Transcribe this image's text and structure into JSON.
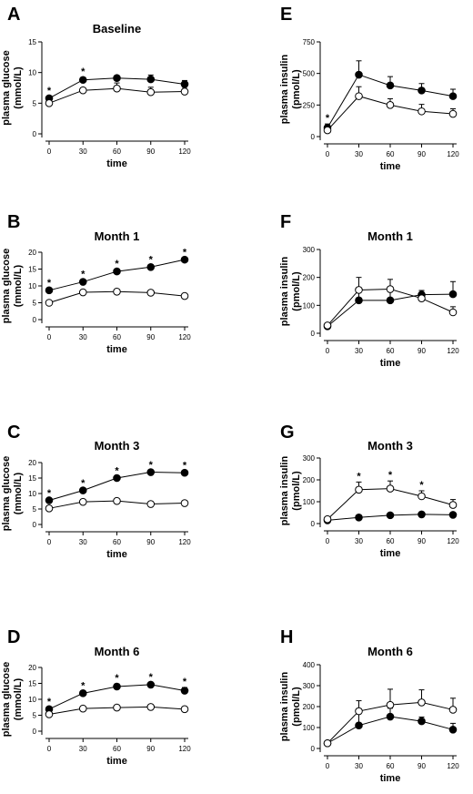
{
  "chart_data": [
    {
      "panel": "A",
      "type": "line",
      "title": "Baseline",
      "xlabel": "time",
      "ylabel": "plasma glucose\n(mmol/L)",
      "x": [
        0,
        30,
        60,
        90,
        120
      ],
      "xlim": [
        0,
        120
      ],
      "ylim": [
        0,
        15
      ],
      "yticks": [
        0,
        5,
        10,
        15
      ],
      "series": [
        {
          "marker": "filled",
          "values": [
            5.8,
            8.8,
            9.1,
            8.9,
            8.1
          ],
          "err": [
            0.3,
            0.4,
            0.4,
            0.7,
            0.6
          ]
        },
        {
          "marker": "open",
          "values": [
            5.0,
            7.1,
            7.4,
            6.8,
            6.9
          ],
          "err": [
            0.3,
            0.4,
            0.9,
            0.8,
            0.7
          ]
        }
      ],
      "significance": [
        0,
        30
      ]
    },
    {
      "panel": "B",
      "type": "line",
      "title": "Month 1",
      "xlabel": "time",
      "ylabel": "plasma glucose\n(mmol/L)",
      "x": [
        0,
        30,
        60,
        90,
        120
      ],
      "xlim": [
        0,
        120
      ],
      "ylim": [
        0,
        20
      ],
      "yticks": [
        0,
        5,
        10,
        15,
        20
      ],
      "series": [
        {
          "marker": "filled",
          "values": [
            8.7,
            11.2,
            14.3,
            15.6,
            17.8
          ],
          "err": [
            0.5,
            0.5,
            0.5,
            0.5,
            0.5
          ]
        },
        {
          "marker": "open",
          "values": [
            5.0,
            8.1,
            8.3,
            8.0,
            7.0
          ],
          "err": [
            0.3,
            0.3,
            0.3,
            0.3,
            0.3
          ]
        }
      ],
      "significance": [
        0,
        30,
        60,
        90,
        120
      ]
    },
    {
      "panel": "C",
      "type": "line",
      "title": "Month 3",
      "xlabel": "time",
      "ylabel": "plasma glucose\n(mmol/L)",
      "x": [
        0,
        30,
        60,
        90,
        120
      ],
      "xlim": [
        0,
        120
      ],
      "ylim": [
        0,
        20
      ],
      "yticks": [
        0,
        5,
        10,
        15,
        20
      ],
      "series": [
        {
          "marker": "filled",
          "values": [
            7.8,
            11.0,
            15.0,
            16.9,
            16.7
          ],
          "err": [
            0.5,
            0.5,
            0.5,
            0.5,
            0.5
          ]
        },
        {
          "marker": "open",
          "values": [
            5.2,
            7.3,
            7.6,
            6.6,
            6.9
          ],
          "err": [
            0.3,
            0.4,
            0.4,
            0.5,
            0.4
          ]
        }
      ],
      "significance": [
        0,
        30,
        60,
        90,
        120
      ]
    },
    {
      "panel": "D",
      "type": "line",
      "title": "Month 6",
      "xlabel": "time",
      "ylabel": "plasma glucose\n(mmol/L)",
      "x": [
        0,
        30,
        60,
        90,
        120
      ],
      "xlim": [
        0,
        120
      ],
      "ylim": [
        0,
        20
      ],
      "yticks": [
        0,
        5,
        10,
        15,
        20
      ],
      "series": [
        {
          "marker": "filled",
          "values": [
            6.9,
            11.9,
            14.0,
            14.6,
            12.7
          ],
          "err": [
            0.5,
            0.6,
            0.8,
            0.6,
            1.0
          ]
        },
        {
          "marker": "open",
          "values": [
            5.3,
            7.1,
            7.4,
            7.6,
            6.9
          ],
          "err": [
            0.3,
            0.3,
            0.3,
            0.3,
            0.3
          ]
        }
      ],
      "significance": [
        0,
        30,
        60,
        90,
        120
      ]
    },
    {
      "panel": "E",
      "type": "line",
      "title": "",
      "xlabel": "time",
      "ylabel": "plasma insulin\n(pmol/L)",
      "x": [
        0,
        30,
        60,
        90,
        120
      ],
      "xlim": [
        0,
        120
      ],
      "ylim": [
        0,
        750
      ],
      "yticks": [
        0,
        250,
        500,
        750
      ],
      "series": [
        {
          "marker": "filled",
          "values": [
            70,
            490,
            405,
            365,
            320
          ],
          "err": [
            30,
            110,
            70,
            55,
            55
          ]
        },
        {
          "marker": "open",
          "values": [
            50,
            320,
            250,
            200,
            180
          ],
          "err": [
            30,
            75,
            50,
            55,
            40
          ]
        }
      ],
      "significance": [
        0
      ]
    },
    {
      "panel": "F",
      "type": "line",
      "title": "Month 1",
      "xlabel": "time",
      "ylabel": "plasma insulin\n(pmol/L)",
      "x": [
        0,
        30,
        60,
        90,
        120
      ],
      "xlim": [
        0,
        120
      ],
      "ylim": [
        0,
        300
      ],
      "yticks": [
        0,
        100,
        200,
        300
      ],
      "series": [
        {
          "marker": "filled",
          "values": [
            25,
            118,
            118,
            138,
            140
          ],
          "err": [
            5,
            45,
            40,
            15,
            45
          ]
        },
        {
          "marker": "open",
          "values": [
            28,
            155,
            158,
            125,
            75
          ],
          "err": [
            5,
            45,
            35,
            28,
            20
          ]
        }
      ],
      "significance": []
    },
    {
      "panel": "G",
      "type": "line",
      "title": "Month 3",
      "xlabel": "time",
      "ylabel": "plasma insulin\n(pmol/L)",
      "x": [
        0,
        30,
        60,
        90,
        120
      ],
      "xlim": [
        0,
        120
      ],
      "ylim": [
        0,
        300
      ],
      "yticks": [
        0,
        100,
        200,
        300
      ],
      "series": [
        {
          "marker": "filled",
          "values": [
            15,
            28,
            38,
            42,
            40
          ],
          "err": [
            3,
            5,
            6,
            6,
            5
          ]
        },
        {
          "marker": "open",
          "values": [
            20,
            155,
            160,
            125,
            85
          ],
          "err": [
            5,
            35,
            35,
            25,
            25
          ]
        }
      ],
      "significance": [
        30,
        60,
        90
      ]
    },
    {
      "panel": "H",
      "type": "line",
      "title": "Month 6",
      "xlabel": "time",
      "ylabel": "plasma insulin\n(pmol/L)",
      "x": [
        0,
        30,
        60,
        90,
        120
      ],
      "xlim": [
        0,
        120
      ],
      "ylim": [
        0,
        400
      ],
      "yticks": [
        0,
        100,
        200,
        300,
        400
      ],
      "series": [
        {
          "marker": "filled",
          "values": [
            25,
            110,
            152,
            130,
            90
          ],
          "err": [
            5,
            80,
            40,
            20,
            30
          ]
        },
        {
          "marker": "open",
          "values": [
            25,
            178,
            208,
            220,
            185
          ],
          "err": [
            5,
            50,
            75,
            60,
            55
          ]
        }
      ],
      "significance": []
    }
  ]
}
